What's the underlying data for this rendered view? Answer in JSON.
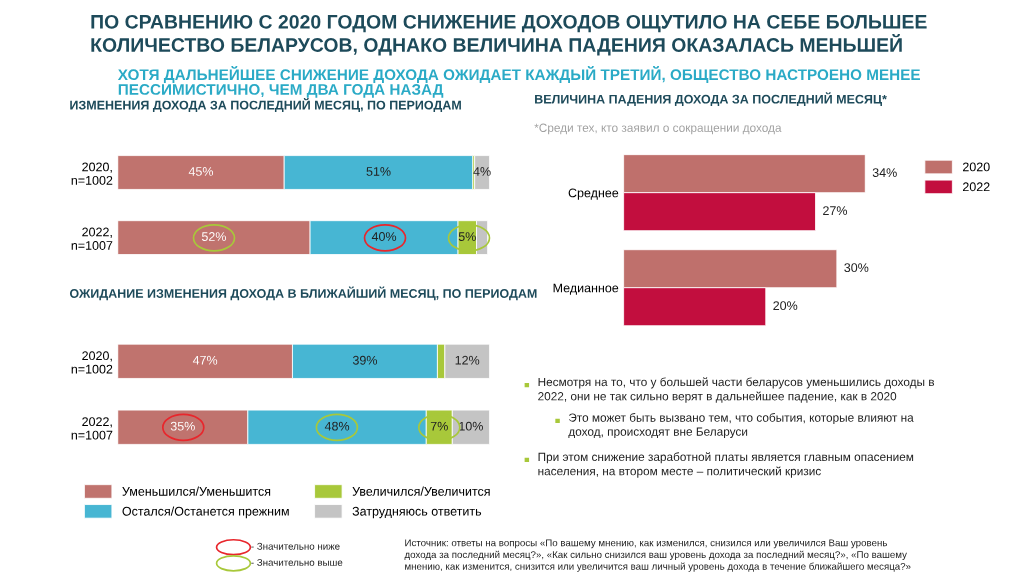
{
  "chart_data": [
    {
      "type": "bar",
      "orientation": "horizontal",
      "stacked": true,
      "title": "ИЗМЕНЕНИЯ ДОХОДА ЗА ПОСЛЕДНИЙ МЕСЯЦ, ПО ПЕРИОДАМ",
      "categories": [
        "2020,\nn=1002",
        "2022,\nn=1007"
      ],
      "tick_labels": "y",
      "legend": false,
      "series": [
        {
          "color": "#c0736e",
          "values": [
            45,
            52
          ],
          "value_labels": [
            "45%",
            "52%"
          ]
        },
        {
          "color": "#47b6d3",
          "values": [
            51,
            40
          ],
          "value_labels": [
            "51%",
            "40%"
          ]
        },
        {
          "color": "#a8c83a",
          "values": [
            0.5,
            5
          ],
          "value_labels": [
            null,
            "5%"
          ]
        },
        {
          "color": "#c4c4c4",
          "values": [
            4,
            3
          ],
          "value_labels": [
            "4%",
            null
          ]
        }
      ]
    },
    {
      "type": "bar",
      "orientation": "horizontal",
      "stacked": true,
      "title": "ОЖИДАНИЕ ИЗМЕНЕНИЯ ДОХОДА В БЛИЖАЙШИЙ МЕСЯЦ, ПО ПЕРИОДАМ",
      "categories": [
        "2020,\nn=1002",
        "2022,\nn=1007"
      ],
      "tick_labels": "y",
      "legend": "bottom",
      "series": [
        {
          "name": "Уменьшился/Уменьшится",
          "color": "#c0736e",
          "values": [
            47,
            35
          ],
          "value_labels": [
            "47%",
            "35%"
          ]
        },
        {
          "name": "Остался/Останется прежним",
          "color": "#47b6d3",
          "values": [
            39,
            48
          ],
          "value_labels": [
            "39%",
            "48%"
          ]
        },
        {
          "name": "Увеличился/Увеличится",
          "color": "#a8c83a",
          "values": [
            2,
            7
          ],
          "value_labels": [
            null,
            "7%"
          ]
        },
        {
          "name": "Затрудняюсь ответить",
          "color": "#c4c4c4",
          "values": [
            12,
            10
          ],
          "value_labels": [
            "12%",
            "10%"
          ]
        }
      ]
    },
    {
      "type": "bar",
      "orientation": "horizontal",
      "title": "ВЕЛИЧИНА ПАДЕНИЯ ДОХОДА ЗА ПОСЛЕДНИЙ МЕСЯЦ*",
      "subtitle": "*Среди тех, кто заявил о сокращении дохода",
      "categories": [
        "Среднее",
        "Медианное"
      ],
      "tick_labels": "y",
      "legend": "right",
      "series": [
        {
          "name": "2020",
          "color": "#bf706c",
          "values": [
            34,
            30
          ],
          "value_labels": [
            "34%",
            "30%"
          ]
        },
        {
          "name": "2022",
          "color": "#c20e3e",
          "values": [
            27,
            20
          ],
          "value_labels": [
            "27%",
            "20%"
          ]
        }
      ]
    },
    {
      "type": "other",
      "title": "ПО СРАВНЕНИЮ С 2020 ГОДОМ СНИЖЕНИЕ ДОХОДОВ ОЩУТИЛО НА СЕБЕ БОЛЬШЕЕ\nКОЛИЧЕСТВО БЕЛАРУСОВ, ОДНАКО ВЕЛИЧИНА ПАДЕНИЯ ОКАЗАЛАСЬ МЕНЬШЕЙ",
      "subtitle": "ХОТЯ ДАЛЬНЕЙШЕЕ СНИЖЕНИЕ ДОХОДА ОЖИДАЕТ КАЖДЫЙ ТРЕТИЙ, ОБЩЕСТВО НАСТРОЕНО МЕНЕЕ\nПЕССИМИСТИЧНО, ЧЕМ ДВА ГОДА НАЗАД",
      "annotations": [
        "Несмотря на то, что у большей части беларусов уменьшились доходы в\n2022, они не так сильно верят в дальнейшее падение, как в 2020",
        "Это может быть вызвано тем, что события, которые влияют на\nдоход, происходят вне Беларуси",
        "При этом снижение заработной платы является главным опасением\nнаселения, на втором месте – политический кризис",
        "- Значительно ниже",
        "- Значительно выше",
        "Источник: ответы на вопросы «По вашему мнению, как изменился, снизился или увеличился Ваш уровень\nдохода за последний месяц?», «Как сильно снизился ваш уровень дохода за последний месяц?», «По вашему\nмнению, как изменится, снизится или увеличится ваш личный уровень дохода в течение ближайшего месяца?»"
      ]
    }
  ]
}
